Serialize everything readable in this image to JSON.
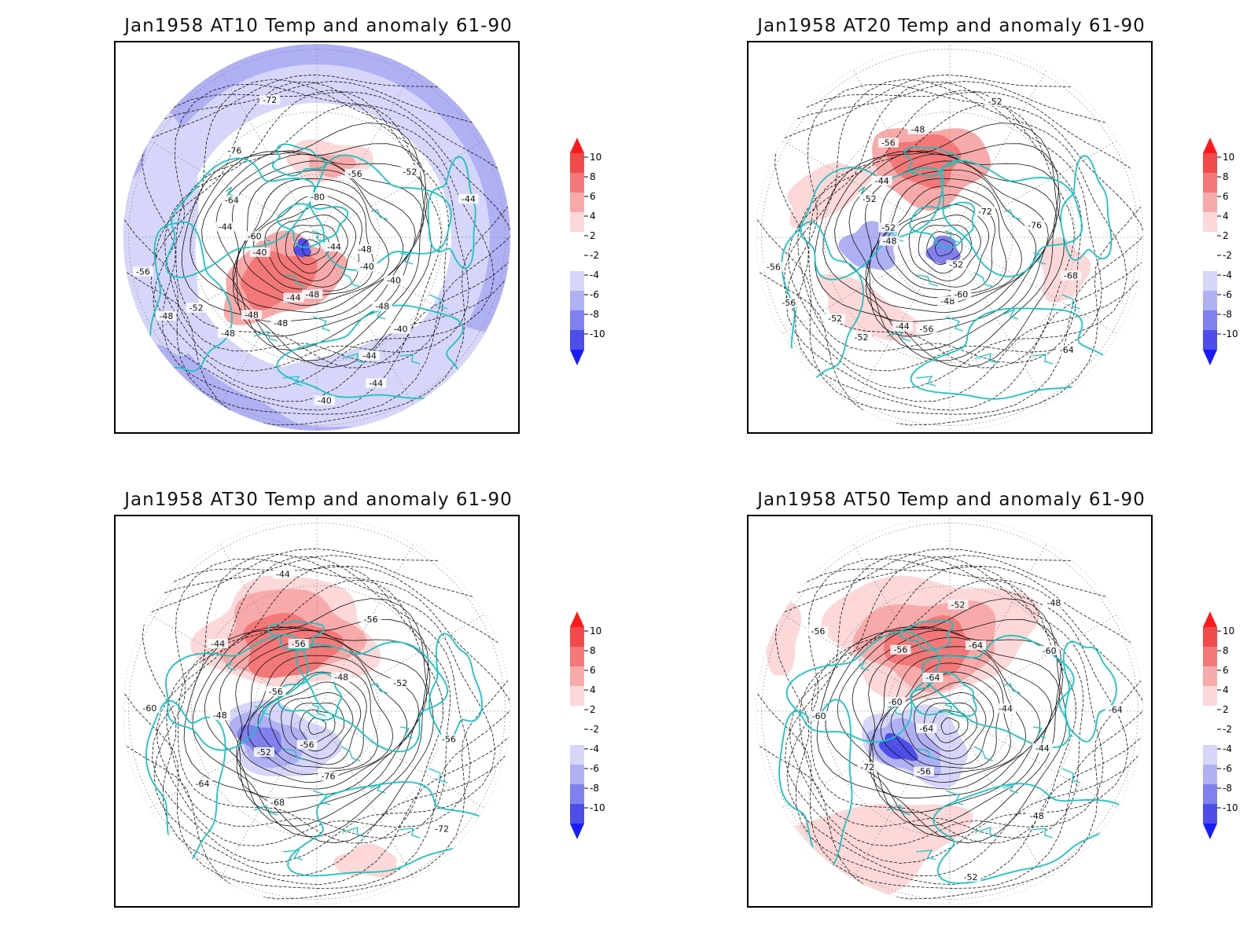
{
  "colorbar": {
    "levels": [
      "10",
      "8",
      "6",
      "4",
      "2",
      "-2",
      "-4",
      "-6",
      "-8",
      "-10"
    ],
    "colors": [
      "#ff1a1a",
      "#f24a4a",
      "#f47878",
      "#f8aaaa",
      "#fcd8d8",
      "#ffffff",
      "#d6d6fa",
      "#b0b0f4",
      "#8080ee",
      "#4d4dea",
      "#1a1aff"
    ]
  },
  "panels": [
    {
      "title": "Jan1958 AT10 Temp and anomaly 61-90",
      "contour_labels": [
        "-44",
        "-40",
        "-48",
        "-44",
        "-40",
        "-44",
        "-48",
        "-52",
        "-56",
        "-60",
        "-64",
        "-76",
        "-72",
        "-80",
        "-56",
        "-52",
        "-44",
        "-48",
        "-40",
        "-40",
        "-44",
        "-48",
        "-48",
        "-48",
        "-48",
        "-40",
        "-44"
      ],
      "anomaly_regions": [
        {
          "kind": "ring-negative",
          "level": -4
        },
        {
          "kind": "warm",
          "level": 4
        },
        {
          "kind": "warm",
          "level": 6
        },
        {
          "kind": "cold",
          "level": -8
        }
      ]
    },
    {
      "title": "Jan1958 AT20 Temp and anomaly 61-90",
      "contour_labels": [
        "-52",
        "-48",
        "-44",
        "-52",
        "-56",
        "-52",
        "-44",
        "-48",
        "-52",
        "-72",
        "-76",
        "-68",
        "-64",
        "-60",
        "-56",
        "-52",
        "-56",
        "-48",
        "-52",
        "-56"
      ],
      "anomaly_regions": [
        {
          "kind": "warm",
          "level": 6
        },
        {
          "kind": "cold",
          "level": -6
        },
        {
          "kind": "warm",
          "level": 2
        }
      ]
    },
    {
      "title": "Jan1958 AT30 Temp and anomaly 61-90",
      "contour_labels": [
        "-56",
        "-52",
        "-48",
        "-44",
        "-44",
        "-48",
        "-52",
        "-56",
        "-72",
        "-76",
        "-68",
        "-64",
        "-60",
        "-56",
        "-56",
        "-56"
      ],
      "anomaly_regions": [
        {
          "kind": "warm",
          "level": 6
        },
        {
          "kind": "cold",
          "level": -6
        },
        {
          "kind": "warm",
          "level": 2
        }
      ]
    },
    {
      "title": "Jan1958 AT50 Temp and anomaly 61-90",
      "contour_labels": [
        "-64",
        "-60",
        "-56",
        "-52",
        "-48",
        "-44",
        "-44",
        "-48",
        "-52",
        "-56",
        "-72",
        "-60",
        "-56",
        "-64",
        "-64",
        "-60",
        "-64"
      ],
      "anomaly_regions": [
        {
          "kind": "warm",
          "level": 6
        },
        {
          "kind": "cold",
          "level": -8
        },
        {
          "kind": "warm",
          "level": 2
        }
      ]
    }
  ]
}
